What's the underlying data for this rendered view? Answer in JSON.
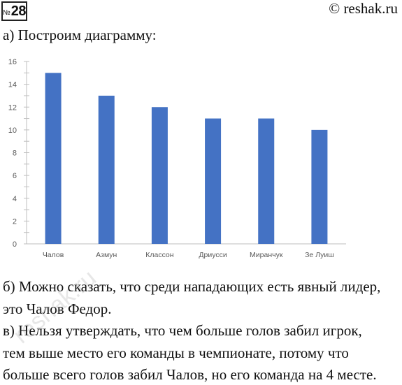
{
  "header": {
    "number_sign": "№",
    "task_number": "28",
    "site": "© reshak.ru"
  },
  "text": {
    "part_a": "а) Построим диаграмму:",
    "part_b_line1": "б) Можно сказать, что среди нападающих есть явный лидер,",
    "part_b_line2": "это Чалов Федор.",
    "part_c_line1": "в) Нельзя утверждать, что чем больше голов забил игрок,",
    "part_c_line2": "тем выше место его команды в чемпионате, потому что",
    "part_c_line3": "больше всего голов забил Чалов, но его команда на 4 месте."
  },
  "watermark": "reshak.ru",
  "chart_data": {
    "type": "bar",
    "categories": [
      "Чалов",
      "Азмун",
      "Классон",
      "Дриусси",
      "Миранчук",
      "Зе Луиш"
    ],
    "values": [
      15,
      13,
      12,
      11,
      11,
      10
    ],
    "title": "",
    "xlabel": "",
    "ylabel": "",
    "ylim": [
      0,
      16
    ],
    "yticks": [
      0,
      2,
      4,
      6,
      8,
      10,
      12,
      14,
      16
    ],
    "grid": false,
    "bar_color": "#4472c4",
    "axis_color": "#bfbfbf",
    "label_color": "#595959"
  }
}
